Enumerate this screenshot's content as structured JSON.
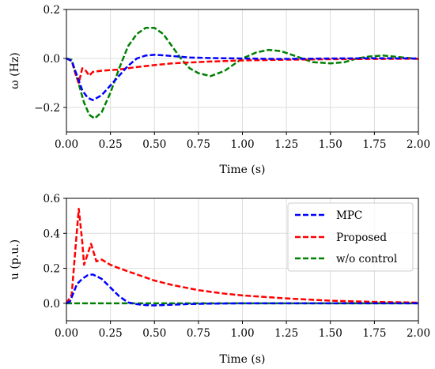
{
  "chart_data": [
    {
      "type": "line",
      "xlabel": "Time (s)",
      "ylabel": "ω (Hz)",
      "xlim": [
        0,
        2
      ],
      "ylim": [
        -0.3,
        0.2
      ],
      "xticks": [
        "0.00",
        "0.25",
        "0.50",
        "0.75",
        "1.00",
        "1.25",
        "1.50",
        "1.75",
        "2.00"
      ],
      "yticks": [
        "−0.2",
        "0.0",
        "0.2"
      ],
      "ytick_values": [
        -0.2,
        0.0,
        0.2
      ],
      "grid": true,
      "legend": false,
      "series": [
        {
          "name": "MPC",
          "color": "#0000ff",
          "dash": "dashed",
          "x": [
            0,
            0.03,
            0.06,
            0.09,
            0.12,
            0.15,
            0.2,
            0.25,
            0.3,
            0.35,
            0.4,
            0.45,
            0.5,
            0.55,
            0.6,
            0.7,
            0.8,
            0.9,
            1.0,
            1.2,
            1.5,
            1.75,
            2.0
          ],
          "y": [
            0,
            -0.01,
            -0.07,
            -0.13,
            -0.16,
            -0.17,
            -0.15,
            -0.11,
            -0.07,
            -0.03,
            0.0,
            0.012,
            0.015,
            0.013,
            0.01,
            0.004,
            0.002,
            0.001,
            0.0,
            -0.002,
            0.0,
            0.001,
            0.0
          ]
        },
        {
          "name": "Proposed",
          "color": "#ff0000",
          "dash": "dashed",
          "x": [
            0,
            0.03,
            0.05,
            0.07,
            0.09,
            0.11,
            0.13,
            0.15,
            0.2,
            0.3,
            0.4,
            0.5,
            0.6,
            0.8,
            1.0,
            1.25,
            1.5,
            1.75,
            2.0
          ],
          "y": [
            0,
            -0.01,
            -0.06,
            -0.1,
            -0.04,
            -0.05,
            -0.07,
            -0.055,
            -0.05,
            -0.045,
            -0.035,
            -0.027,
            -0.02,
            -0.013,
            -0.008,
            -0.005,
            -0.003,
            -0.002,
            -0.001
          ]
        },
        {
          "name": "w/o control",
          "color": "#008000",
          "dash": "dashed",
          "x": [
            0,
            0.03,
            0.06,
            0.1,
            0.13,
            0.16,
            0.2,
            0.25,
            0.3,
            0.35,
            0.4,
            0.45,
            0.5,
            0.55,
            0.6,
            0.65,
            0.7,
            0.75,
            0.82,
            0.9,
            1.0,
            1.08,
            1.15,
            1.22,
            1.3,
            1.4,
            1.5,
            1.58,
            1.65,
            1.72,
            1.8,
            1.9,
            2.0
          ],
          "y": [
            0,
            -0.005,
            -0.08,
            -0.18,
            -0.23,
            -0.245,
            -0.22,
            -0.14,
            -0.04,
            0.05,
            0.1,
            0.125,
            0.125,
            0.1,
            0.05,
            0.0,
            -0.04,
            -0.06,
            -0.072,
            -0.05,
            0.0,
            0.025,
            0.035,
            0.03,
            0.01,
            -0.015,
            -0.02,
            -0.015,
            0.0,
            0.008,
            0.012,
            0.005,
            -0.002
          ]
        }
      ]
    },
    {
      "type": "line",
      "xlabel": "Time (s)",
      "ylabel": "u (p.u.)",
      "xlim": [
        0,
        2
      ],
      "ylim": [
        -0.1,
        0.6
      ],
      "xticks": [
        "0.00",
        "0.25",
        "0.50",
        "0.75",
        "1.00",
        "1.25",
        "1.50",
        "1.75",
        "2.00"
      ],
      "yticks": [
        "0.0",
        "0.2",
        "0.4",
        "0.6"
      ],
      "ytick_values": [
        0.0,
        0.2,
        0.4,
        0.6
      ],
      "grid": true,
      "legend": "top-right",
      "series": [
        {
          "name": "MPC",
          "color": "#0000ff",
          "dash": "dashed",
          "x": [
            0,
            0.02,
            0.04,
            0.06,
            0.09,
            0.12,
            0.15,
            0.2,
            0.25,
            0.3,
            0.35,
            0.4,
            0.45,
            0.5,
            0.55,
            0.6,
            0.7,
            0.8,
            1.0,
            1.5,
            2.0
          ],
          "y": [
            0,
            0.01,
            0.06,
            0.11,
            0.14,
            0.16,
            0.165,
            0.14,
            0.09,
            0.04,
            0.005,
            -0.005,
            -0.01,
            -0.012,
            -0.01,
            -0.008,
            -0.004,
            -0.002,
            0.0,
            0.0,
            0.0
          ]
        },
        {
          "name": "Proposed",
          "color": "#ff0000",
          "dash": "dashed",
          "x": [
            0,
            0.03,
            0.05,
            0.07,
            0.09,
            0.1,
            0.12,
            0.14,
            0.17,
            0.2,
            0.25,
            0.3,
            0.4,
            0.5,
            0.6,
            0.75,
            0.9,
            1.0,
            1.25,
            1.5,
            1.75,
            2.0
          ],
          "y": [
            0,
            0.05,
            0.3,
            0.54,
            0.35,
            0.22,
            0.28,
            0.34,
            0.24,
            0.25,
            0.22,
            0.2,
            0.165,
            0.13,
            0.105,
            0.075,
            0.055,
            0.045,
            0.028,
            0.015,
            0.008,
            0.004
          ]
        },
        {
          "name": "w/o control",
          "color": "#008000",
          "dash": "dashed",
          "x": [
            0,
            2.0
          ],
          "y": [
            0,
            0
          ]
        }
      ]
    }
  ]
}
